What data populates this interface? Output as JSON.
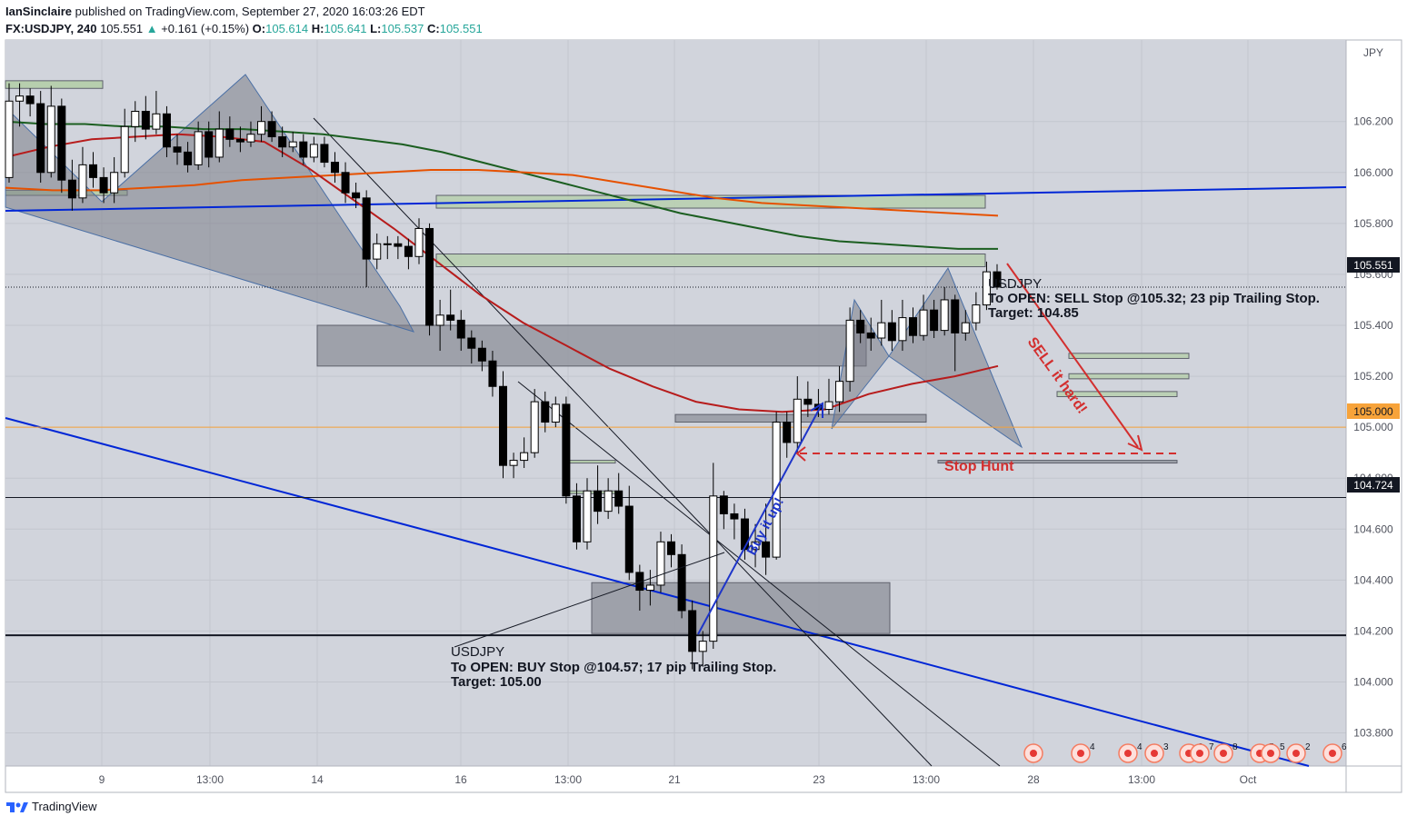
{
  "header": {
    "author": "IanSinclaire",
    "published": "published on TradingView.com, September 27, 2020 16:03:26 EDT",
    "symbol": "FX:USDJPY, 240",
    "last": "105.551",
    "change": "+0.161 (+0.15%)",
    "o_label": "O:",
    "o_value": "105.614",
    "h_label": "H:",
    "h_value": "105.641",
    "l_label": "L:",
    "l_value": "105.537",
    "c_label": "C:",
    "c_value": "105.551"
  },
  "footer": {
    "brand": "TradingView"
  },
  "colors": {
    "plot_bg": "#d1d4dc",
    "up": "#ffffff",
    "down": "#000000",
    "ma_green": "#1b5e20",
    "ma_orange": "#e65100",
    "ma_red": "#b71c1c",
    "trend_blue": "#0026d6",
    "zone_green": "#b7cfae",
    "zone_gray": "#9598a1",
    "sell_red": "#d32f2f",
    "buy_blue": "#1e35c9"
  },
  "chart_data": {
    "type": "candlestick",
    "currency": "JPY",
    "ylim": [
      103.67,
      106.52
    ],
    "y_ticks": [
      "106.200",
      "106.000",
      "105.800",
      "105.600",
      "105.400",
      "105.200",
      "105.000",
      "104.800",
      "104.600",
      "104.400",
      "104.200",
      "104.000",
      "103.800"
    ],
    "x_ticks": [
      "9",
      "13:00",
      "14",
      "16",
      "13:00",
      "21",
      "23",
      "13:00",
      "28",
      "13:00",
      "Oct"
    ],
    "price_labels": {
      "last": "105.551",
      "level_a": "105.000",
      "level_b": "104.724"
    },
    "horizontal_levels": [
      105.0,
      104.724,
      104.183
    ],
    "candles": [
      [
        105.98,
        106.28,
        106.35,
        105.96
      ],
      [
        106.28,
        106.3,
        106.35,
        106.18
      ],
      [
        106.3,
        106.27,
        106.33,
        106.22
      ],
      [
        106.27,
        106.0,
        106.32,
        105.96
      ],
      [
        106.0,
        106.26,
        106.34,
        105.98
      ],
      [
        106.26,
        105.97,
        106.29,
        105.92
      ],
      [
        105.97,
        105.9,
        106.05,
        105.85
      ],
      [
        105.9,
        106.03,
        106.1,
        105.88
      ],
      [
        106.03,
        105.98,
        106.08,
        105.94
      ],
      [
        105.98,
        105.92,
        106.02,
        105.88
      ],
      [
        105.92,
        106.0,
        106.06,
        105.88
      ],
      [
        106.0,
        106.18,
        106.25,
        105.98
      ],
      [
        106.18,
        106.24,
        106.28,
        106.12
      ],
      [
        106.24,
        106.17,
        106.3,
        106.13
      ],
      [
        106.17,
        106.23,
        106.32,
        106.15
      ],
      [
        106.23,
        106.1,
        106.26,
        106.06
      ],
      [
        106.1,
        106.08,
        106.15,
        106.03
      ],
      [
        106.08,
        106.03,
        106.12,
        106.0
      ],
      [
        106.03,
        106.16,
        106.2,
        106.01
      ],
      [
        106.16,
        106.06,
        106.2,
        106.02
      ],
      [
        106.06,
        106.17,
        106.24,
        106.04
      ],
      [
        106.17,
        106.13,
        106.22,
        106.1
      ],
      [
        106.13,
        106.12,
        106.18,
        106.08
      ],
      [
        106.12,
        106.15,
        106.2,
        106.1
      ],
      [
        106.15,
        106.2,
        106.26,
        106.12
      ],
      [
        106.2,
        106.14,
        106.24,
        106.12
      ],
      [
        106.14,
        106.1,
        106.18,
        106.06
      ],
      [
        106.1,
        106.12,
        106.16,
        106.08
      ],
      [
        106.12,
        106.06,
        106.15,
        106.03
      ],
      [
        106.06,
        106.11,
        106.14,
        106.04
      ],
      [
        106.11,
        106.04,
        106.14,
        106.02
      ],
      [
        106.04,
        106.0,
        106.08,
        105.96
      ],
      [
        106.0,
        105.92,
        106.04,
        105.88
      ],
      [
        105.92,
        105.9,
        105.96,
        105.86
      ],
      [
        105.9,
        105.66,
        105.93,
        105.55
      ],
      [
        105.66,
        105.72,
        105.76,
        105.62
      ],
      [
        105.72,
        105.72,
        105.75,
        105.66
      ],
      [
        105.72,
        105.71,
        105.75,
        105.66
      ],
      [
        105.71,
        105.67,
        105.74,
        105.62
      ],
      [
        105.67,
        105.78,
        105.82,
        105.64
      ],
      [
        105.78,
        105.4,
        105.8,
        105.36
      ],
      [
        105.4,
        105.44,
        105.5,
        105.3
      ],
      [
        105.44,
        105.42,
        105.54,
        105.38
      ],
      [
        105.42,
        105.35,
        105.46,
        105.3
      ],
      [
        105.35,
        105.31,
        105.38,
        105.25
      ],
      [
        105.31,
        105.26,
        105.34,
        105.22
      ],
      [
        105.26,
        105.16,
        105.3,
        105.12
      ],
      [
        105.16,
        104.85,
        105.22,
        104.8
      ],
      [
        104.85,
        104.87,
        104.9,
        104.8
      ],
      [
        104.87,
        104.9,
        104.96,
        104.84
      ],
      [
        104.9,
        105.1,
        105.15,
        104.88
      ],
      [
        105.1,
        105.02,
        105.14,
        104.98
      ],
      [
        105.02,
        105.09,
        105.12,
        105.0
      ],
      [
        105.09,
        104.73,
        105.12,
        104.7
      ],
      [
        104.73,
        104.55,
        104.78,
        104.52
      ],
      [
        104.55,
        104.75,
        104.8,
        104.52
      ],
      [
        104.75,
        104.67,
        104.85,
        104.62
      ],
      [
        104.67,
        104.75,
        104.8,
        104.64
      ],
      [
        104.75,
        104.69,
        104.82,
        104.66
      ],
      [
        104.69,
        104.43,
        104.77,
        104.4
      ],
      [
        104.43,
        104.36,
        104.46,
        104.28
      ],
      [
        104.36,
        104.38,
        104.44,
        104.3
      ],
      [
        104.38,
        104.55,
        104.59,
        104.35
      ],
      [
        104.55,
        104.5,
        104.58,
        104.45
      ],
      [
        104.5,
        104.28,
        104.54,
        104.25
      ],
      [
        104.28,
        104.12,
        104.32,
        104.05
      ],
      [
        104.12,
        104.16,
        104.2,
        104.06
      ],
      [
        104.16,
        104.73,
        104.86,
        104.13
      ],
      [
        104.73,
        104.66,
        104.75,
        104.6
      ],
      [
        104.66,
        104.64,
        104.7,
        104.56
      ],
      [
        104.64,
        104.52,
        104.68,
        104.48
      ],
      [
        104.52,
        104.55,
        104.62,
        104.45
      ],
      [
        104.55,
        104.49,
        104.7,
        104.42
      ],
      [
        104.49,
        105.02,
        105.06,
        104.48
      ],
      [
        105.02,
        104.94,
        105.06,
        104.88
      ],
      [
        104.94,
        105.11,
        105.2,
        104.9
      ],
      [
        105.11,
        105.09,
        105.18,
        105.04
      ],
      [
        105.09,
        105.07,
        105.15,
        105.04
      ],
      [
        105.07,
        105.1,
        105.19,
        105.05
      ],
      [
        105.1,
        105.18,
        105.24,
        105.06
      ],
      [
        105.18,
        105.42,
        105.47,
        105.14
      ],
      [
        105.42,
        105.37,
        105.46,
        105.33
      ],
      [
        105.37,
        105.35,
        105.43,
        105.3
      ],
      [
        105.35,
        105.41,
        105.5,
        105.32
      ],
      [
        105.41,
        105.34,
        105.46,
        105.3
      ],
      [
        105.34,
        105.43,
        105.5,
        105.3
      ],
      [
        105.43,
        105.36,
        105.47,
        105.33
      ],
      [
        105.36,
        105.46,
        105.52,
        105.34
      ],
      [
        105.46,
        105.38,
        105.5,
        105.35
      ],
      [
        105.38,
        105.5,
        105.55,
        105.36
      ],
      [
        105.5,
        105.37,
        105.52,
        105.22
      ],
      [
        105.37,
        105.41,
        105.46,
        105.34
      ],
      [
        105.41,
        105.48,
        105.53,
        105.38
      ],
      [
        105.48,
        105.61,
        105.65,
        105.46
      ],
      [
        105.61,
        105.55,
        105.64,
        105.54
      ]
    ],
    "moving_averages": [
      {
        "color": "ma_green",
        "values": [
          106.2,
          106.19,
          106.19,
          106.18,
          106.18,
          106.17,
          106.17,
          106.16,
          106.15,
          106.13,
          106.11,
          106.08,
          106.04,
          106.0,
          105.96,
          105.92,
          105.88,
          105.84,
          105.81,
          105.78,
          105.75,
          105.73,
          105.72,
          105.71,
          105.7,
          105.7
        ]
      },
      {
        "color": "ma_orange",
        "values": [
          105.94,
          105.93,
          105.93,
          105.94,
          105.95,
          105.97,
          105.98,
          105.99,
          106.0,
          106.01,
          106.01,
          106.0,
          105.99,
          105.96,
          105.93,
          105.9,
          105.88,
          105.87,
          105.86,
          105.85,
          105.84,
          105.83
        ]
      },
      {
        "color": "ma_red",
        "values": [
          106.06,
          106.1,
          106.13,
          106.14,
          106.15,
          106.14,
          106.12,
          106.02,
          105.9,
          105.78,
          105.65,
          105.52,
          105.41,
          105.32,
          105.23,
          105.16,
          105.1,
          105.07,
          105.06,
          105.07,
          105.13,
          105.17,
          105.2,
          105.24
        ]
      }
    ],
    "zones": [
      {
        "kind": "green",
        "range": [
          105.86,
          105.91
        ]
      },
      {
        "kind": "green",
        "range": [
          105.63,
          105.68
        ]
      },
      {
        "kind": "gray",
        "range": [
          105.24,
          105.4
        ]
      },
      {
        "kind": "gray",
        "range": [
          105.02,
          105.05
        ]
      },
      {
        "kind": "gray",
        "range": [
          104.19,
          104.39
        ]
      },
      {
        "kind": "green",
        "range": [
          105.27,
          105.29
        ]
      },
      {
        "kind": "green",
        "range": [
          105.19,
          105.21
        ]
      },
      {
        "kind": "green",
        "range": [
          105.12,
          105.14
        ]
      },
      {
        "kind": "gray",
        "range": [
          104.86,
          104.87
        ]
      }
    ],
    "annotations": {
      "sell_title": "USDJPY",
      "sell_line1": "To OPEN: SELL Stop @105.32; 23 pip Trailing Stop.",
      "sell_line2": "Target: 104.85",
      "buy_title": "USDJPY",
      "buy_line1": "To OPEN: BUY Stop @104.57; 17 pip Trailing Stop.",
      "buy_line2": "Target: 105.00",
      "sell_arrow": "SELL it hard!",
      "buy_arrow": "Buy it up!",
      "stop_hunt": "Stop Hunt"
    },
    "event_markers": [
      "",
      "4",
      "4",
      "3",
      "3",
      "7",
      "8",
      "5",
      "5",
      "2",
      "6"
    ]
  }
}
